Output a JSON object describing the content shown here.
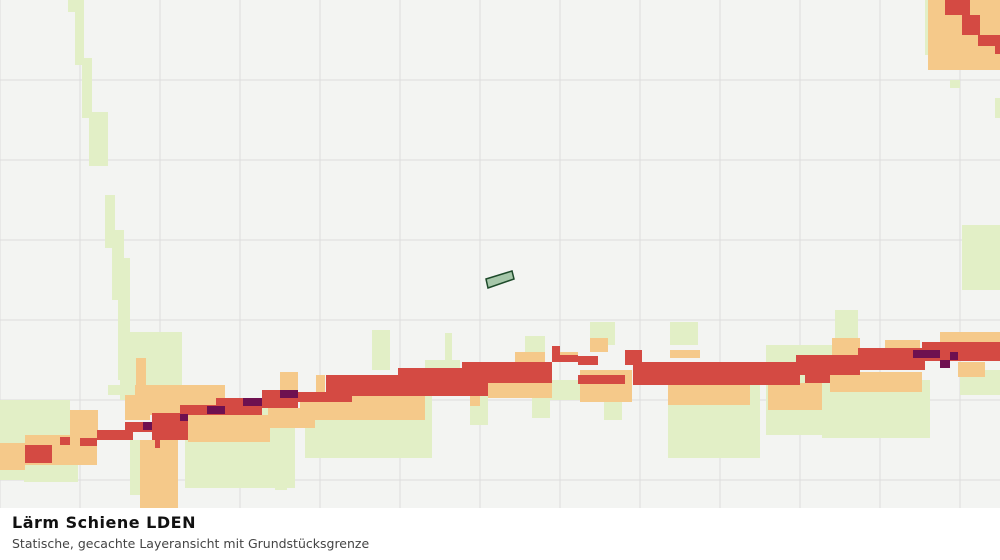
{
  "map": {
    "title": "Lärm Schiene LDEN",
    "subtitle": "Statische, gecachte Layeransicht mit Grundstücksgrenze"
  }
}
